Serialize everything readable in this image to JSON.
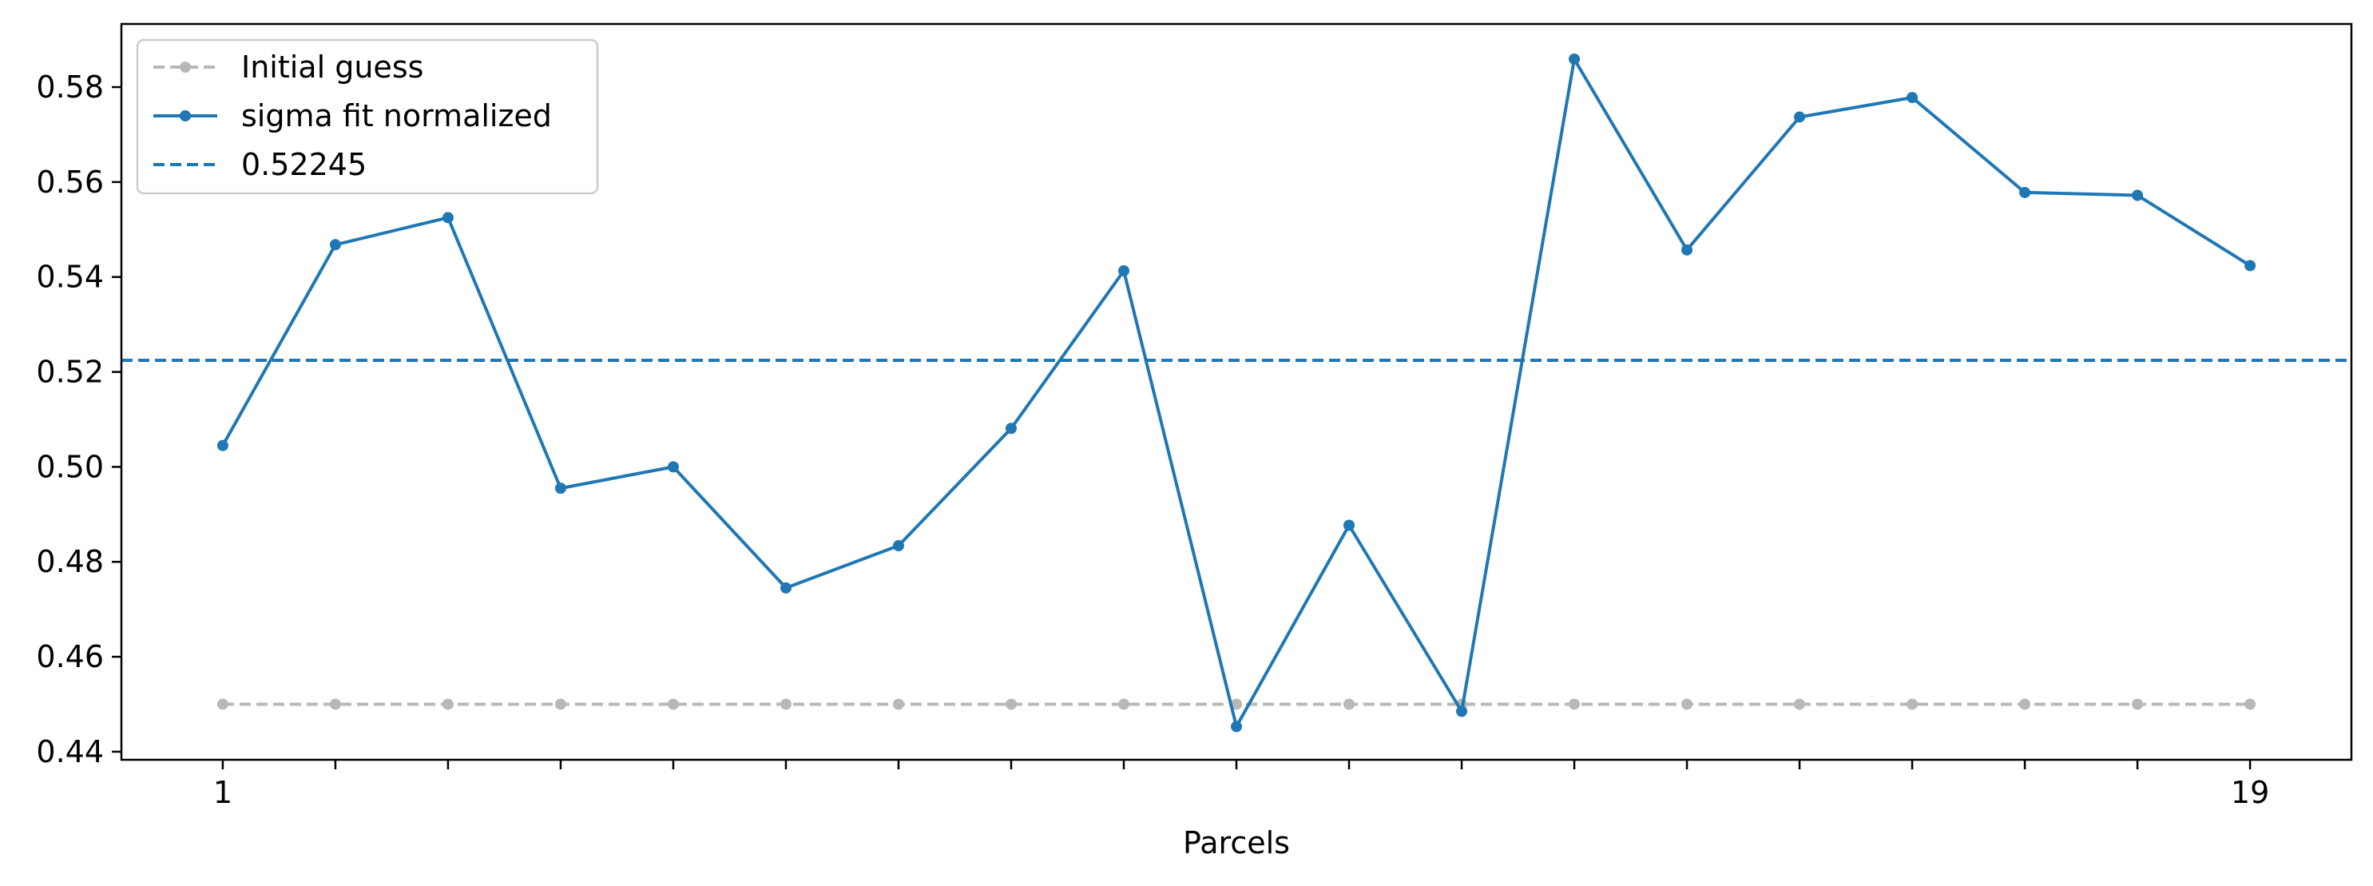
{
  "chart_data": {
    "type": "line",
    "title": "",
    "xlabel": "Parcels",
    "ylabel": "",
    "x": [
      1,
      2,
      3,
      4,
      5,
      6,
      7,
      8,
      9,
      10,
      11,
      12,
      13,
      14,
      15,
      16,
      17,
      18,
      19
    ],
    "xlim": [
      0.1,
      19.9
    ],
    "ylim": [
      0.4383,
      0.5933
    ],
    "xticks": [
      1,
      2,
      3,
      4,
      5,
      6,
      7,
      8,
      9,
      10,
      11,
      12,
      13,
      14,
      15,
      16,
      17,
      18,
      19
    ],
    "xtick_labels": [
      "1",
      "",
      "",
      "",
      "",
      "",
      "",
      "",
      "",
      "",
      "",
      "",
      "",
      "",
      "",
      "",
      "",
      "",
      "19"
    ],
    "yticks": [
      0.44,
      0.46,
      0.48,
      0.5,
      0.52,
      0.54,
      0.56,
      0.58
    ],
    "ytick_labels": [
      "0.44",
      "0.46",
      "0.48",
      "0.50",
      "0.52",
      "0.54",
      "0.56",
      "0.58"
    ],
    "grid": false,
    "legend_position": "top-left",
    "series": [
      {
        "name": "Initial guess",
        "style": "dashed-marker",
        "color": "#b8b8b8",
        "values": [
          0.45,
          0.45,
          0.45,
          0.45,
          0.45,
          0.45,
          0.45,
          0.45,
          0.45,
          0.45,
          0.45,
          0.45,
          0.45,
          0.45,
          0.45,
          0.45,
          0.45,
          0.45,
          0.45
        ]
      },
      {
        "name": "sigma fit normalized",
        "style": "solid-marker",
        "color": "#1f77b4",
        "values": [
          0.5045,
          0.5468,
          0.5525,
          0.4955,
          0.5,
          0.4745,
          0.4834,
          0.5081,
          0.5413,
          0.4453,
          0.4877,
          0.4485,
          0.5859,
          0.5457,
          0.5737,
          0.5778,
          0.5578,
          0.5572,
          0.5424
        ]
      }
    ],
    "hlines": [
      {
        "name": "0.52245",
        "value": 0.52245,
        "style": "dashed",
        "color": "#1f77b4"
      }
    ]
  }
}
